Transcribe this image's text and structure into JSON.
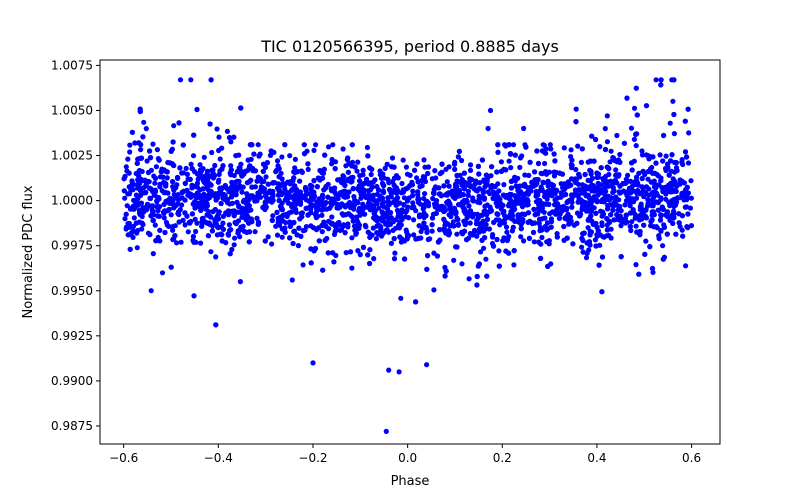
{
  "chart_data": {
    "type": "scatter",
    "title": "TIC 0120566395, period 0.8885 days",
    "xlabel": "Phase",
    "ylabel": "Normalized PDC flux",
    "xlim": [
      -0.65,
      0.66
    ],
    "ylim": [
      0.9865,
      1.0078
    ],
    "xticks": [
      -0.6,
      -0.4,
      -0.2,
      0.0,
      0.2,
      0.4,
      0.6
    ],
    "xtick_labels": [
      "−0.6",
      "−0.4",
      "−0.2",
      "0.0",
      "0.2",
      "0.4",
      "0.6"
    ],
    "yticks": [
      0.9875,
      0.99,
      0.9925,
      0.995,
      0.9975,
      1.0,
      1.0025,
      1.005,
      1.0075
    ],
    "ytick_labels": [
      "0.9875",
      "0.9900",
      "0.9925",
      "0.9950",
      "0.9975",
      "1.0000",
      "1.0025",
      "1.0050",
      "1.0075"
    ],
    "grid": false,
    "marker_color": "#0000ff",
    "series": [
      {
        "name": "PDC flux",
        "x_range": [
          -0.6,
          0.6
        ],
        "n_points": 3600,
        "baseline": 1.0,
        "core_scatter": 0.0011,
        "wide_scatter": 0.0025,
        "outer_extremes": [
          0.9926,
          1.0067
        ],
        "center_extremes": [
          0.9872,
          1.0031
        ],
        "notable_points": [
          {
            "x": -0.045,
            "y": 0.9872
          },
          {
            "x": -0.018,
            "y": 0.9905
          },
          {
            "x": -0.04,
            "y": 0.9906
          },
          {
            "x": 0.04,
            "y": 0.9909
          },
          {
            "x": -0.2,
            "y": 0.991
          },
          {
            "x": 0.175,
            "y": 1.005
          },
          {
            "x": 0.17,
            "y": 1.004
          },
          {
            "x": 0.245,
            "y": 1.004
          },
          {
            "x": -0.48,
            "y": 1.0067
          },
          {
            "x": 0.525,
            "y": 1.0067
          }
        ]
      }
    ]
  }
}
